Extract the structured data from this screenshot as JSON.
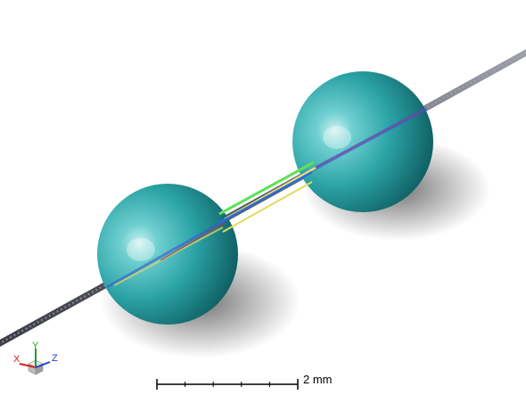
{
  "viewport": {
    "background": "#ffffff",
    "scene_objects": [
      {
        "name": "sphere",
        "color": "#2aa3a6"
      },
      {
        "name": "sphere",
        "color": "#2aa3a6"
      },
      {
        "name": "fiber",
        "color": "#6e7378"
      }
    ]
  },
  "axis_triad": {
    "x_label": "X",
    "y_label": "Y",
    "z_label": "Z",
    "x_color": "#d42020",
    "y_color": "#1a9e2a",
    "z_color": "#2040c8"
  },
  "scale_bar": {
    "label": "2 mm",
    "color": "#000000"
  }
}
